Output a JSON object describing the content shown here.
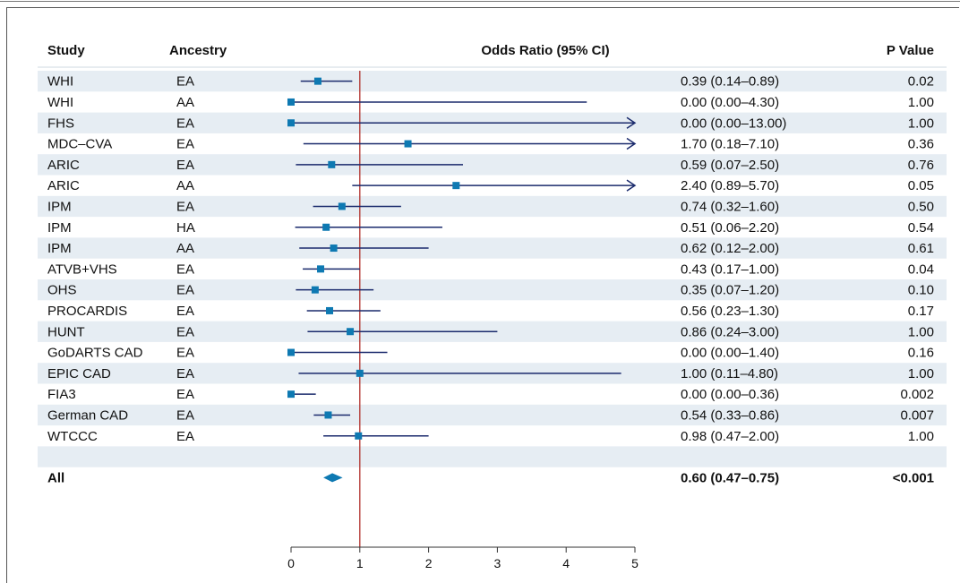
{
  "chart_data": {
    "type": "forest",
    "headers": {
      "study": "Study",
      "ancestry": "Ancestry",
      "odds_ratio": "Odds Ratio (95% CI)",
      "p_value": "P Value"
    },
    "xlim": [
      0,
      5
    ],
    "x_ticks": [
      "0",
      "1",
      "2",
      "3",
      "4",
      "5"
    ],
    "reference_line": 1,
    "rows": [
      {
        "study": "WHI",
        "ancestry": "EA",
        "or": 0.39,
        "lo": 0.14,
        "hi": 0.89,
        "arrow": false,
        "ci_text": "0.39 (0.14–0.89)",
        "p": "0.02"
      },
      {
        "study": "WHI",
        "ancestry": "AA",
        "or": 0.0,
        "lo": 0.0,
        "hi": 4.3,
        "arrow": false,
        "ci_text": "0.00 (0.00–4.30)",
        "p": "1.00"
      },
      {
        "study": "FHS",
        "ancestry": "EA",
        "or": 0.0,
        "lo": 0.0,
        "hi": 13.0,
        "arrow": true,
        "ci_text": "0.00 (0.00–13.00)",
        "p": "1.00"
      },
      {
        "study": "MDC–CVA",
        "ancestry": "EA",
        "or": 1.7,
        "lo": 0.18,
        "hi": 7.1,
        "arrow": true,
        "ci_text": "1.70 (0.18–7.10)",
        "p": "0.36"
      },
      {
        "study": "ARIC",
        "ancestry": "EA",
        "or": 0.59,
        "lo": 0.07,
        "hi": 2.5,
        "arrow": false,
        "ci_text": "0.59 (0.07–2.50)",
        "p": "0.76"
      },
      {
        "study": "ARIC",
        "ancestry": "AA",
        "or": 2.4,
        "lo": 0.89,
        "hi": 5.7,
        "arrow": true,
        "ci_text": "2.40 (0.89–5.70)",
        "p": "0.05"
      },
      {
        "study": "IPM",
        "ancestry": "EA",
        "or": 0.74,
        "lo": 0.32,
        "hi": 1.6,
        "arrow": false,
        "ci_text": "0.74 (0.32–1.60)",
        "p": "0.50"
      },
      {
        "study": "IPM",
        "ancestry": "HA",
        "or": 0.51,
        "lo": 0.06,
        "hi": 2.2,
        "arrow": false,
        "ci_text": "0.51 (0.06–2.20)",
        "p": "0.54"
      },
      {
        "study": "IPM",
        "ancestry": "AA",
        "or": 0.62,
        "lo": 0.12,
        "hi": 2.0,
        "arrow": false,
        "ci_text": "0.62 (0.12–2.00)",
        "p": "0.61"
      },
      {
        "study": "ATVB+VHS",
        "ancestry": "EA",
        "or": 0.43,
        "lo": 0.17,
        "hi": 1.0,
        "arrow": false,
        "ci_text": "0.43 (0.17–1.00)",
        "p": "0.04"
      },
      {
        "study": "OHS",
        "ancestry": "EA",
        "or": 0.35,
        "lo": 0.07,
        "hi": 1.2,
        "arrow": false,
        "ci_text": "0.35 (0.07–1.20)",
        "p": "0.10"
      },
      {
        "study": "PROCARDIS",
        "ancestry": "EA",
        "or": 0.56,
        "lo": 0.23,
        "hi": 1.3,
        "arrow": false,
        "ci_text": "0.56 (0.23–1.30)",
        "p": "0.17"
      },
      {
        "study": "HUNT",
        "ancestry": "EA",
        "or": 0.86,
        "lo": 0.24,
        "hi": 3.0,
        "arrow": false,
        "ci_text": "0.86 (0.24–3.00)",
        "p": "1.00"
      },
      {
        "study": "GoDARTS CAD",
        "ancestry": "EA",
        "or": 0.0,
        "lo": 0.0,
        "hi": 1.4,
        "arrow": false,
        "ci_text": "0.00 (0.00–1.40)",
        "p": "0.16"
      },
      {
        "study": "EPIC CAD",
        "ancestry": "EA",
        "or": 1.0,
        "lo": 0.11,
        "hi": 4.8,
        "arrow": false,
        "ci_text": "1.00 (0.11–4.80)",
        "p": "1.00"
      },
      {
        "study": "FIA3",
        "ancestry": "EA",
        "or": 0.0,
        "lo": 0.0,
        "hi": 0.36,
        "arrow": false,
        "ci_text": "0.00 (0.00–0.36)",
        "p": "0.002"
      },
      {
        "study": "German CAD",
        "ancestry": "EA",
        "or": 0.54,
        "lo": 0.33,
        "hi": 0.86,
        "arrow": false,
        "ci_text": "0.54 (0.33–0.86)",
        "p": "0.007"
      },
      {
        "study": "WTCCC",
        "ancestry": "EA",
        "or": 0.98,
        "lo": 0.47,
        "hi": 2.0,
        "arrow": false,
        "ci_text": "0.98 (0.47–2.00)",
        "p": "1.00"
      }
    ],
    "summary": {
      "study": "All",
      "or": 0.6,
      "lo": 0.47,
      "hi": 0.75,
      "ci_text": "0.60 (0.47–0.75)",
      "p": "<0.001"
    },
    "colors": {
      "row_shade": "#e6edf3",
      "marker": "#0e79b2",
      "ci_line": "#1a2a6c",
      "reference_line": "#b0302a",
      "axis": "#333333"
    }
  }
}
